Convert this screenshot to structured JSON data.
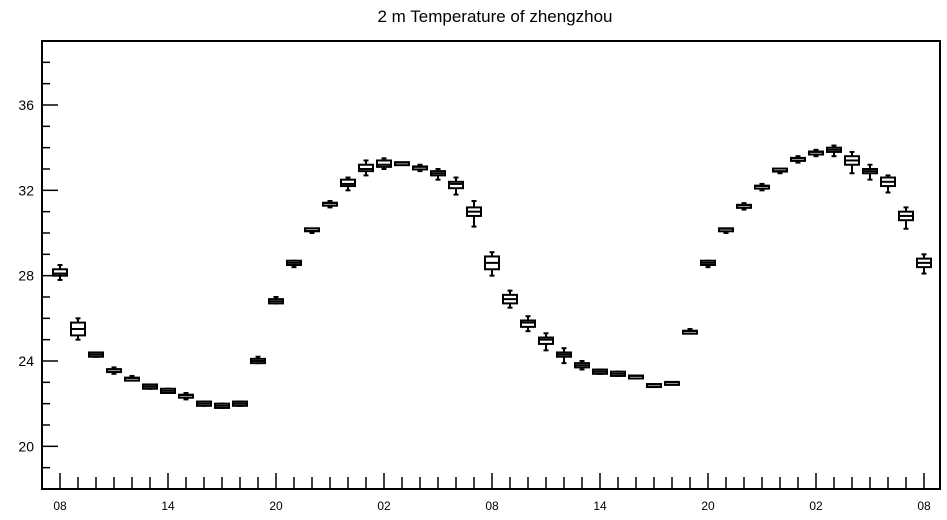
{
  "chart_data": {
    "type": "boxplot",
    "title": "2 m Temperature of zhengzhou",
    "xlabel": "",
    "ylabel": "",
    "ylim": [
      18,
      39
    ],
    "xlim": [
      0,
      49
    ],
    "yticks": [
      20,
      24,
      28,
      32,
      36
    ],
    "ytick_labels": [
      "20",
      "24",
      "28",
      "32",
      "36"
    ],
    "ytick_minor_step": 1,
    "xticks": [
      1,
      7,
      13,
      19,
      25,
      31,
      37,
      43,
      49
    ],
    "xtick_labels": [
      "08",
      "14",
      "20",
      "02",
      "08",
      "14",
      "20",
      "02",
      "08"
    ],
    "grid": false,
    "boxes": [
      {
        "x": 1,
        "min": 27.8,
        "q1": 28.0,
        "median": 28.1,
        "q3": 28.3,
        "max": 28.5
      },
      {
        "x": 2,
        "min": 25.0,
        "q1": 25.2,
        "median": 25.5,
        "q3": 25.8,
        "max": 26.0
      },
      {
        "x": 3,
        "min": 24.2,
        "q1": 24.2,
        "median": 24.3,
        "q3": 24.4,
        "max": 24.4
      },
      {
        "x": 4,
        "min": 23.4,
        "q1": 23.5,
        "median": 23.5,
        "q3": 23.6,
        "max": 23.7
      },
      {
        "x": 5,
        "min": 23.1,
        "q1": 23.1,
        "median": 23.2,
        "q3": 23.2,
        "max": 23.3
      },
      {
        "x": 6,
        "min": 22.7,
        "q1": 22.7,
        "median": 22.8,
        "q3": 22.9,
        "max": 22.9
      },
      {
        "x": 7,
        "min": 22.5,
        "q1": 22.5,
        "median": 22.6,
        "q3": 22.7,
        "max": 22.7
      },
      {
        "x": 8,
        "min": 22.2,
        "q1": 22.3,
        "median": 22.4,
        "q3": 22.4,
        "max": 22.5
      },
      {
        "x": 9,
        "min": 21.9,
        "q1": 21.9,
        "median": 22.0,
        "q3": 22.1,
        "max": 22.1
      },
      {
        "x": 10,
        "min": 21.8,
        "q1": 21.8,
        "median": 21.9,
        "q3": 22.0,
        "max": 22.0
      },
      {
        "x": 11,
        "min": 21.9,
        "q1": 21.9,
        "median": 22.0,
        "q3": 22.1,
        "max": 22.1
      },
      {
        "x": 12,
        "min": 23.9,
        "q1": 23.9,
        "median": 24.0,
        "q3": 24.1,
        "max": 24.2
      },
      {
        "x": 13,
        "min": 26.7,
        "q1": 26.7,
        "median": 26.8,
        "q3": 26.9,
        "max": 27.0
      },
      {
        "x": 14,
        "min": 28.4,
        "q1": 28.5,
        "median": 28.6,
        "q3": 28.7,
        "max": 28.7
      },
      {
        "x": 15,
        "min": 30.0,
        "q1": 30.1,
        "median": 30.1,
        "q3": 30.2,
        "max": 30.2
      },
      {
        "x": 16,
        "min": 31.2,
        "q1": 31.3,
        "median": 31.4,
        "q3": 31.4,
        "max": 31.5
      },
      {
        "x": 17,
        "min": 32.0,
        "q1": 32.2,
        "median": 32.3,
        "q3": 32.5,
        "max": 32.6
      },
      {
        "x": 18,
        "min": 32.7,
        "q1": 32.9,
        "median": 33.0,
        "q3": 33.2,
        "max": 33.4
      },
      {
        "x": 19,
        "min": 33.0,
        "q1": 33.1,
        "median": 33.2,
        "q3": 33.4,
        "max": 33.5
      },
      {
        "x": 20,
        "min": 33.2,
        "q1": 33.2,
        "median": 33.3,
        "q3": 33.3,
        "max": 33.3
      },
      {
        "x": 21,
        "min": 32.9,
        "q1": 33.0,
        "median": 33.1,
        "q3": 33.1,
        "max": 33.2
      },
      {
        "x": 22,
        "min": 32.5,
        "q1": 32.7,
        "median": 32.8,
        "q3": 32.9,
        "max": 33.0
      },
      {
        "x": 23,
        "min": 31.8,
        "q1": 32.1,
        "median": 32.3,
        "q3": 32.4,
        "max": 32.6
      },
      {
        "x": 24,
        "min": 30.3,
        "q1": 30.8,
        "median": 31.0,
        "q3": 31.2,
        "max": 31.5
      },
      {
        "x": 25,
        "min": 28.0,
        "q1": 28.3,
        "median": 28.6,
        "q3": 28.9,
        "max": 29.1
      },
      {
        "x": 26,
        "min": 26.5,
        "q1": 26.7,
        "median": 26.9,
        "q3": 27.1,
        "max": 27.3
      },
      {
        "x": 27,
        "min": 25.4,
        "q1": 25.6,
        "median": 25.8,
        "q3": 25.9,
        "max": 26.1
      },
      {
        "x": 28,
        "min": 24.5,
        "q1": 24.8,
        "median": 25.0,
        "q3": 25.1,
        "max": 25.3
      },
      {
        "x": 29,
        "min": 23.9,
        "q1": 24.2,
        "median": 24.3,
        "q3": 24.4,
        "max": 24.6
      },
      {
        "x": 30,
        "min": 23.6,
        "q1": 23.7,
        "median": 23.8,
        "q3": 23.9,
        "max": 24.0
      },
      {
        "x": 31,
        "min": 23.4,
        "q1": 23.4,
        "median": 23.5,
        "q3": 23.6,
        "max": 23.6
      },
      {
        "x": 32,
        "min": 23.3,
        "q1": 23.3,
        "median": 23.4,
        "q3": 23.5,
        "max": 23.5
      },
      {
        "x": 33,
        "min": 23.2,
        "q1": 23.2,
        "median": 23.3,
        "q3": 23.3,
        "max": 23.3
      },
      {
        "x": 34,
        "min": 22.8,
        "q1": 22.8,
        "median": 22.9,
        "q3": 22.9,
        "max": 22.9
      },
      {
        "x": 35,
        "min": 22.9,
        "q1": 22.9,
        "median": 23.0,
        "q3": 23.0,
        "max": 23.0
      },
      {
        "x": 36,
        "min": 25.3,
        "q1": 25.3,
        "median": 25.4,
        "q3": 25.4,
        "max": 25.5
      },
      {
        "x": 37,
        "min": 28.4,
        "q1": 28.5,
        "median": 28.6,
        "q3": 28.7,
        "max": 28.7
      },
      {
        "x": 38,
        "min": 30.0,
        "q1": 30.1,
        "median": 30.2,
        "q3": 30.2,
        "max": 30.2
      },
      {
        "x": 39,
        "min": 31.1,
        "q1": 31.2,
        "median": 31.3,
        "q3": 31.3,
        "max": 31.4
      },
      {
        "x": 40,
        "min": 32.0,
        "q1": 32.1,
        "median": 32.2,
        "q3": 32.2,
        "max": 32.3
      },
      {
        "x": 41,
        "min": 32.8,
        "q1": 32.9,
        "median": 32.9,
        "q3": 33.0,
        "max": 33.0
      },
      {
        "x": 42,
        "min": 33.3,
        "q1": 33.4,
        "median": 33.5,
        "q3": 33.5,
        "max": 33.6
      },
      {
        "x": 43,
        "min": 33.6,
        "q1": 33.7,
        "median": 33.8,
        "q3": 33.8,
        "max": 33.9
      },
      {
        "x": 44,
        "min": 33.6,
        "q1": 33.8,
        "median": 33.9,
        "q3": 34.0,
        "max": 34.1
      },
      {
        "x": 45,
        "min": 32.8,
        "q1": 33.2,
        "median": 33.4,
        "q3": 33.6,
        "max": 33.8
      },
      {
        "x": 46,
        "min": 32.5,
        "q1": 32.8,
        "median": 32.9,
        "q3": 33.0,
        "max": 33.2
      },
      {
        "x": 47,
        "min": 31.9,
        "q1": 32.2,
        "median": 32.4,
        "q3": 32.6,
        "max": 32.7
      },
      {
        "x": 48,
        "min": 30.2,
        "q1": 30.6,
        "median": 30.8,
        "q3": 31.0,
        "max": 31.2
      },
      {
        "x": 49,
        "min": 28.1,
        "q1": 28.4,
        "median": 28.6,
        "q3": 28.8,
        "max": 29.0
      }
    ]
  }
}
